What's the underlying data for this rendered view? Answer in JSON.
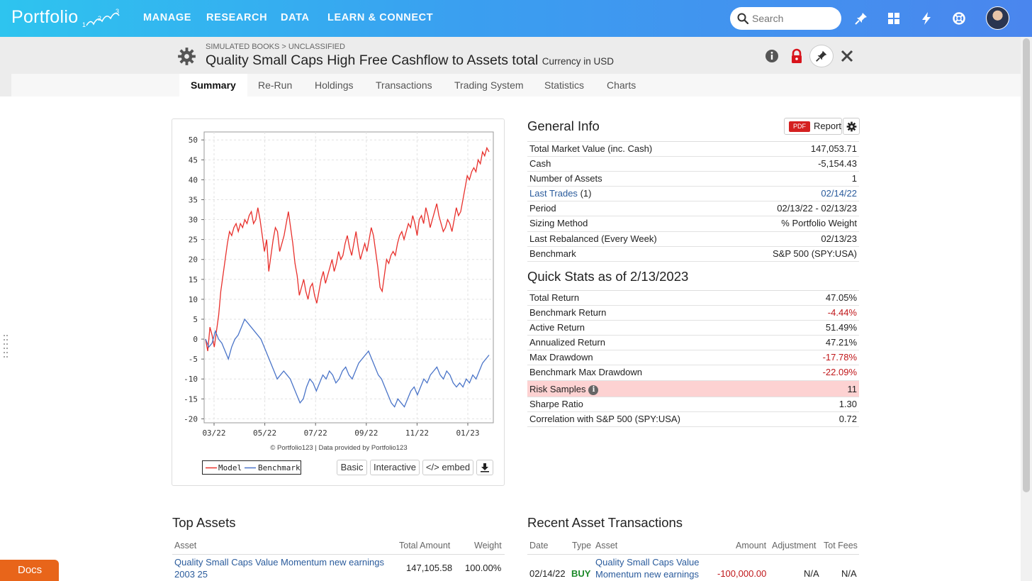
{
  "nav": {
    "logo": "Portfolio",
    "logo_marks": [
      "1",
      "2",
      "3"
    ],
    "items": [
      "MANAGE",
      "RESEARCH",
      "DATA",
      "LEARN & CONNECT"
    ],
    "search_placeholder": "Search"
  },
  "header": {
    "breadcrumb": "SIMULATED BOOKS > UNCLASSIFIED",
    "title": "Quality Small Caps High Free Cashflow to Assets total",
    "currency": "Currency in USD"
  },
  "tabs": [
    "Summary",
    "Re-Run",
    "Holdings",
    "Transactions",
    "Trading System",
    "Statistics",
    "Charts"
  ],
  "chart": {
    "credit": "© Portfolio123 | Data provided by Portfolio123",
    "buttons": [
      "Basic",
      "Interactive",
      "</> embed"
    ]
  },
  "chart_data": {
    "type": "line",
    "x_ticks": [
      "03/22",
      "05/22",
      "07/22",
      "09/22",
      "11/22",
      "01/23"
    ],
    "y_ticks": [
      "50",
      "45",
      "40",
      "35",
      "30",
      "25",
      "20",
      "15",
      "10",
      "5",
      "0",
      "-5",
      "-10",
      "-15",
      "-20"
    ],
    "ylim": [
      -21,
      52
    ],
    "grid": true,
    "legend_position": "bottom-left",
    "series": [
      {
        "name": "Model",
        "color": "#e8302c",
        "values": [
          0,
          -3,
          3,
          1,
          -2,
          2,
          6,
          12,
          16,
          20,
          24,
          27,
          26,
          28,
          29,
          27,
          29,
          28,
          30,
          29,
          31,
          32,
          29,
          30,
          33,
          30,
          26,
          22,
          25,
          17,
          21,
          25,
          28,
          27,
          22,
          24,
          26,
          29,
          32,
          28,
          24,
          19,
          16,
          11,
          13,
          15,
          12,
          10,
          13,
          14,
          11,
          9,
          12,
          15,
          17,
          14,
          16,
          18,
          20,
          17,
          19,
          22,
          20,
          21,
          24,
          26,
          23,
          21,
          24,
          27,
          23,
          20,
          22,
          24,
          22,
          25,
          28,
          26,
          22,
          18,
          13,
          12,
          16,
          20,
          19,
          21,
          22,
          21,
          24,
          26,
          27,
          25,
          27,
          29,
          28,
          31,
          29,
          26,
          30,
          31,
          29,
          33,
          31,
          28,
          30,
          32,
          34,
          31,
          29,
          27,
          28,
          30,
          29,
          27,
          30,
          33,
          31,
          32,
          35,
          38,
          41,
          40,
          42,
          43,
          42,
          45,
          44,
          47,
          46,
          48,
          47
        ]
      },
      {
        "name": "Benchmark",
        "color": "#4a74c8",
        "values": [
          0,
          -2,
          -1,
          2,
          0,
          -1,
          -3,
          -5,
          -2,
          0,
          1,
          3,
          5,
          4,
          3,
          2,
          1,
          0,
          -2,
          -4,
          -6,
          -8,
          -10,
          -9,
          -8,
          -9,
          -10,
          -12,
          -14,
          -16,
          -15,
          -12,
          -10,
          -11,
          -13,
          -11,
          -9,
          -10,
          -8,
          -9,
          -11,
          -10,
          -8,
          -7,
          -9,
          -10,
          -8,
          -6,
          -5,
          -4,
          -3,
          -5,
          -7,
          -9,
          -10,
          -12,
          -14,
          -16,
          -17,
          -15,
          -16,
          -17,
          -15,
          -13,
          -12,
          -14,
          -12,
          -10,
          -11,
          -9,
          -8,
          -7,
          -9,
          -10,
          -8,
          -9,
          -11,
          -12,
          -11,
          -12,
          -10,
          -11,
          -9,
          -10,
          -8,
          -6,
          -5,
          -4
        ]
      }
    ]
  },
  "general_info": {
    "title": "General Info",
    "report_badge": "PDF",
    "report_label": "Report",
    "rows": [
      {
        "k": "Total Market Value (inc. Cash)",
        "v": "147,053.71"
      },
      {
        "k": "Cash",
        "v": "-5,154.43"
      },
      {
        "k": "Number of Assets",
        "v": "1"
      },
      {
        "k": "Last Trades",
        "k2": "(1)",
        "v": "02/14/22"
      },
      {
        "k": "Period",
        "v": "02/13/22 - 02/13/23"
      },
      {
        "k": "Sizing Method",
        "v": "% Portfolio Weight"
      },
      {
        "k": "Last Rebalanced (Every Week)",
        "v": "02/13/23"
      },
      {
        "k": "Benchmark",
        "v": "S&P 500 (SPY:USA)"
      }
    ]
  },
  "quick_stats": {
    "title": "Quick Stats as of 2/13/2023",
    "rows": [
      {
        "k": "Total Return",
        "v": "47.05%"
      },
      {
        "k": "Benchmark Return",
        "v": "-4.44%"
      },
      {
        "k": "Active Return",
        "v": "51.49%"
      },
      {
        "k": "Annualized Return",
        "v": "47.21%"
      },
      {
        "k": "Max Drawdown",
        "v": "-17.78%"
      },
      {
        "k": "Benchmark Max Drawdown",
        "v": "-22.09%"
      },
      {
        "k": "Risk Samples",
        "v": "11"
      },
      {
        "k": "Sharpe Ratio",
        "v": "1.30"
      },
      {
        "k": "Correlation with S&P 500 (SPY:USA)",
        "v": "0.72"
      }
    ]
  },
  "top_assets": {
    "title": "Top Assets",
    "headers": [
      "Asset",
      "Total Amount",
      "Weight"
    ],
    "rows": [
      {
        "asset_line1": "Quality Small Caps Value Momentum new earnings",
        "asset_line2": "2003 25",
        "amount": "147,105.58",
        "weight": "100.00%"
      }
    ]
  },
  "recent_tx": {
    "title": "Recent Asset Transactions",
    "headers": [
      "Date",
      "Type",
      "Asset",
      "Amount",
      "Adjustment",
      "Tot Fees"
    ],
    "rows": [
      {
        "date": "02/14/22",
        "type": "BUY",
        "asset_line1": "Quality Small Caps Value",
        "asset_line2": "Momentum new earnings",
        "amount": "-100,000.00",
        "adjustment": "N/A",
        "fees": "N/A"
      }
    ]
  },
  "docs_label": "Docs"
}
